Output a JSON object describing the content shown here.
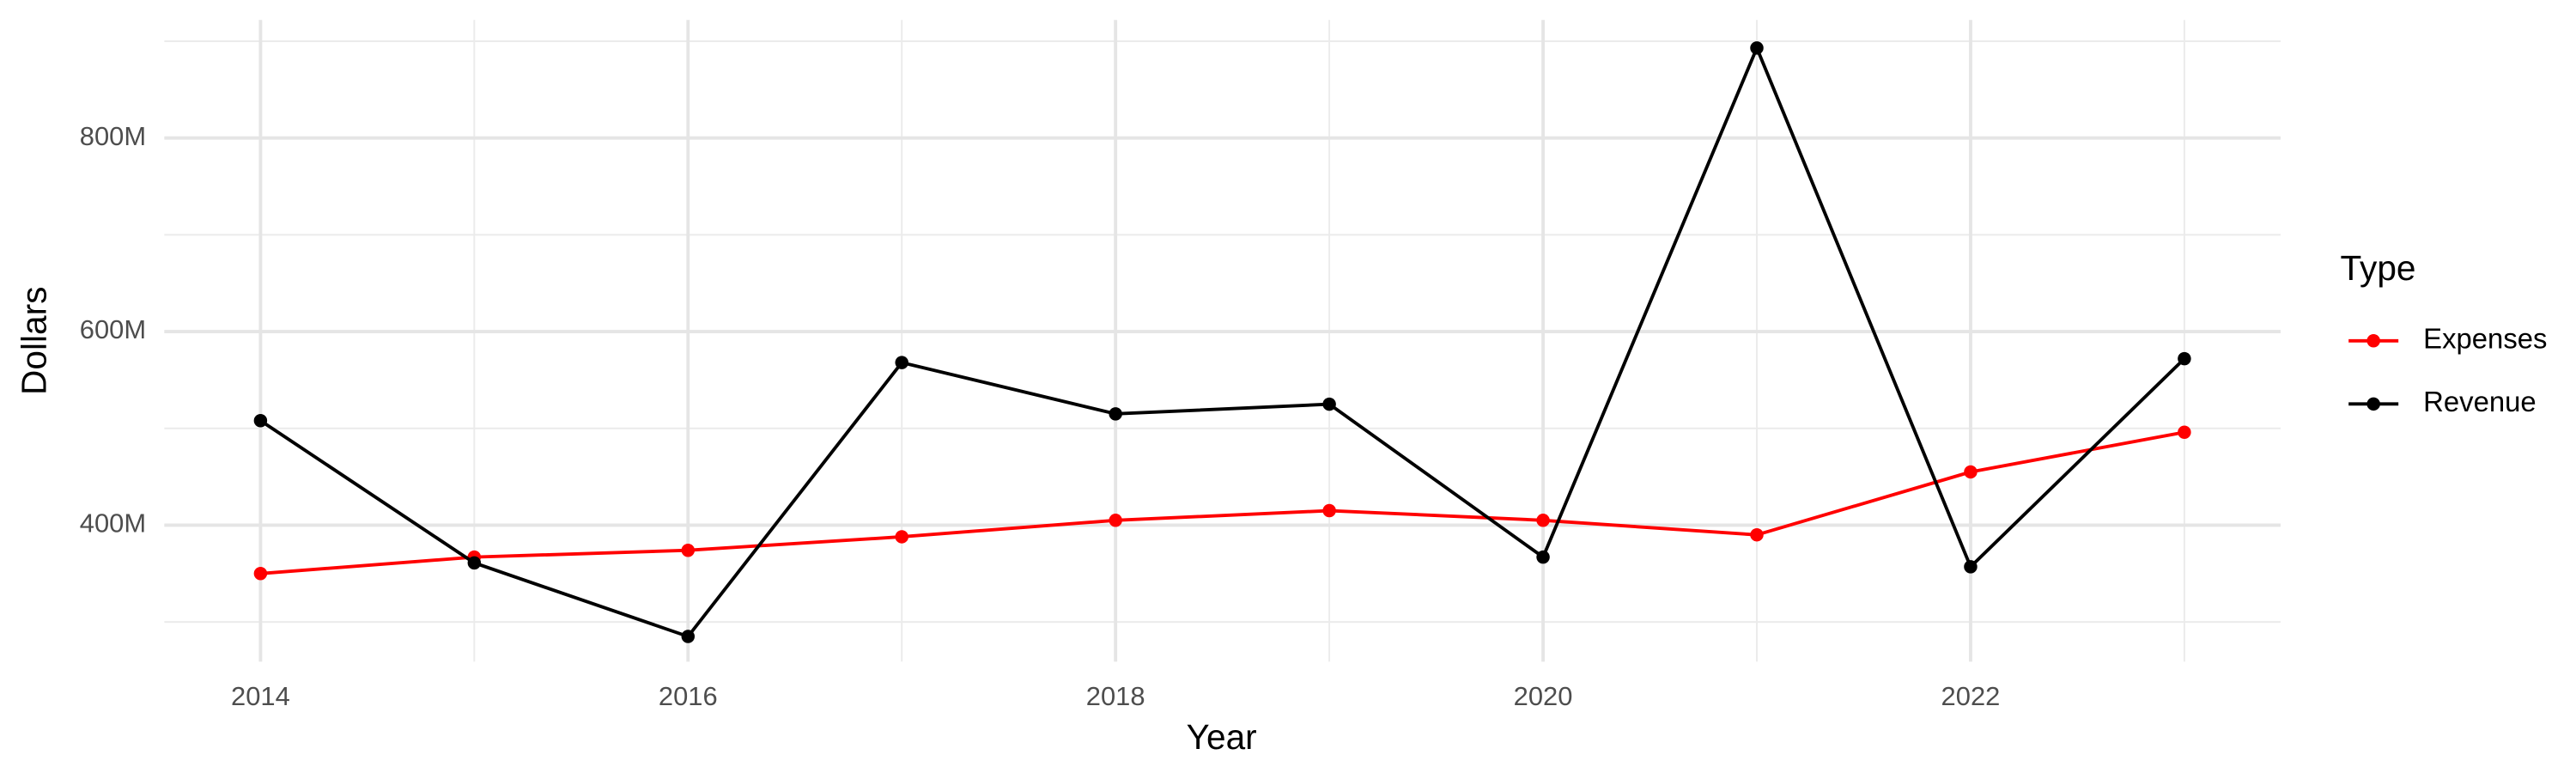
{
  "chart_data": {
    "type": "line",
    "x_label": "Year",
    "y_label": "Dollars",
    "x": [
      2014,
      2015,
      2016,
      2017,
      2018,
      2019,
      2020,
      2021,
      2022,
      2023
    ],
    "series": [
      {
        "name": "Expenses",
        "color": "#ff0000",
        "values": [
          350000000,
          367000000,
          374000000,
          388000000,
          405000000,
          415000000,
          405000000,
          390000000,
          455000000,
          496000000
        ]
      },
      {
        "name": "Revenue",
        "color": "#000000",
        "values": [
          508000000,
          361000000,
          285000000,
          568000000,
          515000000,
          525000000,
          367000000,
          893000000,
          357000000,
          572000000
        ]
      }
    ],
    "xlim": [
      2013.55,
      2023.45
    ],
    "xticks": [
      2014,
      2016,
      2018,
      2020,
      2022
    ],
    "ylim": [
      259000000,
      922000000
    ],
    "yticks": [
      {
        "value": 400000000,
        "label": "400M"
      },
      {
        "value": 600000000,
        "label": "600M"
      },
      {
        "value": 800000000,
        "label": "800M"
      }
    ],
    "grid": true,
    "minor_grid": true,
    "legend_title": "Type",
    "legend_position": "right"
  }
}
